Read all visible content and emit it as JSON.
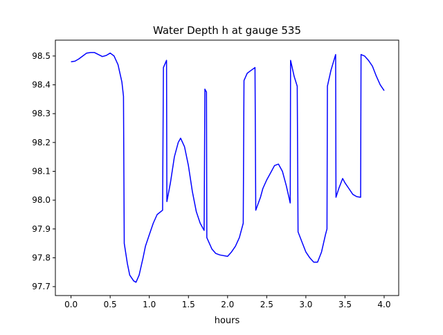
{
  "chart_data": {
    "type": "line",
    "title": "Water Depth h at gauge 535",
    "xlabel": "hours",
    "ylabel": "",
    "xlim": [
      -0.2,
      4.186
    ],
    "ylim": [
      97.669,
      98.555
    ],
    "grid": false,
    "x_ticks": [
      0.0,
      0.5,
      1.0,
      1.5,
      2.0,
      2.5,
      3.0,
      3.5,
      4.0
    ],
    "x_tick_labels": [
      "0.0",
      "0.5",
      "1.0",
      "1.5",
      "2.0",
      "2.5",
      "3.0",
      "3.5",
      "4.0"
    ],
    "y_ticks": [
      97.7,
      97.8,
      97.9,
      98.0,
      98.1,
      98.2,
      98.3,
      98.4,
      98.5
    ],
    "y_tick_labels": [
      "97.7",
      "97.8",
      "97.9",
      "98.0",
      "98.1",
      "98.2",
      "98.3",
      "98.4",
      "98.5"
    ],
    "series": [
      {
        "name": "h",
        "color": "#0000ff",
        "x": [
          0.0,
          0.05,
          0.1,
          0.15,
          0.2,
          0.25,
          0.3,
          0.35,
          0.4,
          0.45,
          0.5,
          0.55,
          0.6,
          0.65,
          0.67,
          0.68,
          0.72,
          0.75,
          0.8,
          0.83,
          0.87,
          0.92,
          0.95,
          1.0,
          1.05,
          1.1,
          1.17,
          1.18,
          1.22,
          1.225,
          1.27,
          1.32,
          1.37,
          1.4,
          1.45,
          1.5,
          1.55,
          1.6,
          1.65,
          1.7,
          1.71,
          1.73,
          1.735,
          1.8,
          1.85,
          1.9,
          2.0,
          2.05,
          2.1,
          2.15,
          2.2,
          2.21,
          2.25,
          2.3,
          2.35,
          2.36,
          2.42,
          2.45,
          2.5,
          2.55,
          2.6,
          2.65,
          2.7,
          2.75,
          2.8,
          2.805,
          2.85,
          2.89,
          2.9,
          2.95,
          3.0,
          3.05,
          3.1,
          3.15,
          3.2,
          3.25,
          3.27,
          3.275,
          3.32,
          3.38,
          3.385,
          3.42,
          3.47,
          3.5,
          3.55,
          3.6,
          3.65,
          3.7,
          3.705,
          3.75,
          3.8,
          3.85,
          3.9,
          3.95,
          4.0
        ],
        "y": [
          98.48,
          98.482,
          98.49,
          98.5,
          98.51,
          98.512,
          98.512,
          98.505,
          98.498,
          98.502,
          98.51,
          98.5,
          98.47,
          98.41,
          98.36,
          97.85,
          97.78,
          97.74,
          97.72,
          97.715,
          97.74,
          97.8,
          97.84,
          97.88,
          97.92,
          97.95,
          97.965,
          98.46,
          98.485,
          97.995,
          98.06,
          98.15,
          98.2,
          98.215,
          98.185,
          98.12,
          98.03,
          97.96,
          97.92,
          97.895,
          98.385,
          98.375,
          97.87,
          97.83,
          97.815,
          97.81,
          97.805,
          97.82,
          97.84,
          97.87,
          97.92,
          98.415,
          98.44,
          98.45,
          98.46,
          97.965,
          98.01,
          98.04,
          98.07,
          98.095,
          98.12,
          98.125,
          98.1,
          98.05,
          97.99,
          98.485,
          98.43,
          98.395,
          97.89,
          97.855,
          97.82,
          97.8,
          97.785,
          97.785,
          97.82,
          97.88,
          97.9,
          98.395,
          98.45,
          98.505,
          98.01,
          98.04,
          98.075,
          98.06,
          98.04,
          98.02,
          98.012,
          98.01,
          98.505,
          98.5,
          98.485,
          98.465,
          98.43,
          98.4,
          98.38
        ]
      }
    ]
  }
}
